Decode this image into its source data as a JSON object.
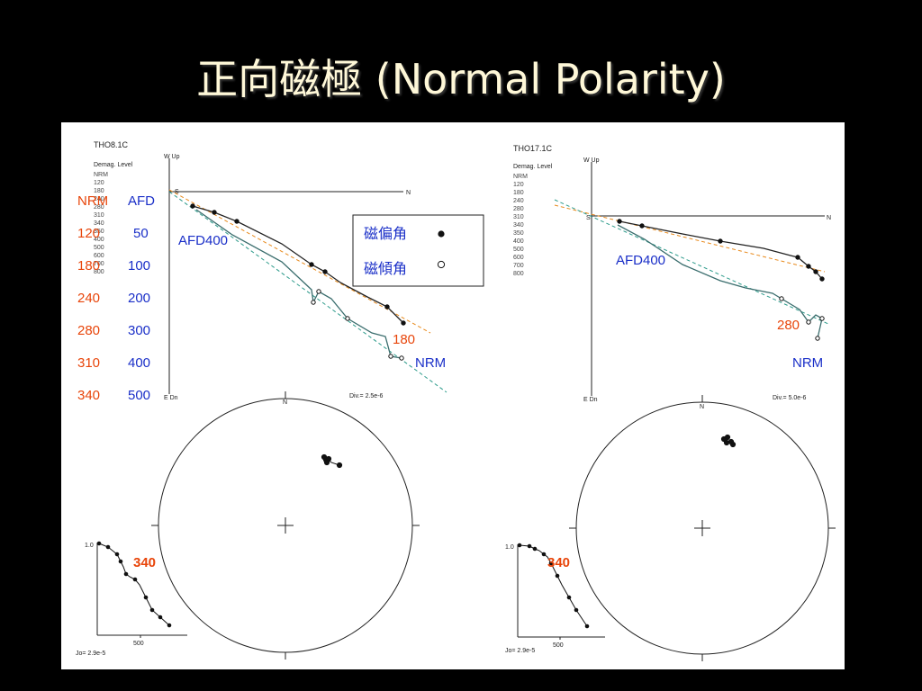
{
  "title": {
    "cjk": "正向磁極",
    "latin": "(Normal Polarity)"
  },
  "legend_table": {
    "left_header": "NRM",
    "right_header": "AFD",
    "rows": [
      {
        "left": "120",
        "right": "50"
      },
      {
        "left": "180",
        "right": "100"
      },
      {
        "left": "240",
        "right": "200"
      },
      {
        "left": "280",
        "right": "300"
      },
      {
        "left": "310",
        "right": "400"
      },
      {
        "left": "340",
        "right": "500"
      }
    ]
  },
  "key_box": {
    "declination": "磁偏角",
    "inclination": "磁傾角"
  },
  "left_sample": {
    "id": "THO8.1C",
    "demag_header": "Demag. Level",
    "levels": [
      "NRM",
      "120",
      "180",
      "240",
      "280",
      "310",
      "340",
      "350",
      "400",
      "500",
      "600",
      "700",
      "800"
    ],
    "axis_top": "W Up",
    "axis_right": "N",
    "axis_bottom": "E Dn",
    "axis_left": "S",
    "div": "Div.= 2.5e-6",
    "annotation_afd": "AFD400",
    "annotation_step": "180",
    "annotation_nrm": "NRM",
    "stereonet_north": "N",
    "jo": "Jo= 2.9e-5",
    "int_tick": "1.0",
    "int_axis_label": "500",
    "int_annotation": "340"
  },
  "right_sample": {
    "id": "THO17.1C",
    "demag_header": "Demag. Level",
    "levels": [
      "NRM",
      "120",
      "180",
      "240",
      "280",
      "310",
      "340",
      "350",
      "400",
      "500",
      "600",
      "700",
      "800"
    ],
    "axis_top": "W Up",
    "axis_right": "N",
    "axis_bottom": "E Dn",
    "axis_left": "S",
    "div": "Div.= 5.0e-6",
    "annotation_afd": "AFD400",
    "annotation_step": "280",
    "annotation_nrm": "NRM",
    "stereonet_north": "N",
    "jo": "Jo= 2.9e-5",
    "int_tick": "1.0",
    "int_axis_label": "500",
    "int_annotation": "340"
  },
  "colors": {
    "title": "#fff8d8",
    "panel": "#ffffff",
    "red_label": "#e8450a",
    "blue_label": "#1a2fc8",
    "fit_orange": "#e8891a",
    "fit_teal": "#2b9a8a"
  }
}
